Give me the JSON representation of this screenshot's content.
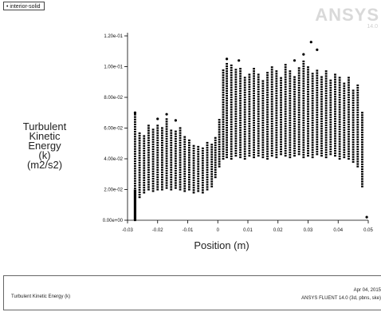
{
  "legend": {
    "marker": "•",
    "label": "interior-solid"
  },
  "logo": {
    "text": "ANSYS",
    "sub": "14.0"
  },
  "chart_data": {
    "type": "scatter",
    "title": "",
    "ylabel_lines": [
      "Turbulent",
      "Kinetic",
      "Energy",
      "(k)",
      "(m2/s2)"
    ],
    "xlabel": "Position (m)",
    "xlim": [
      -0.03,
      0.05
    ],
    "ylim": [
      0,
      0.12
    ],
    "x_ticks": [
      -0.03,
      -0.02,
      -0.01,
      0,
      0.01,
      0.02,
      0.03,
      0.04,
      0.05
    ],
    "x_tick_labels": [
      "-0.03",
      "-0.02",
      "-0.01",
      "0",
      "0.01",
      "0.02",
      "0.03",
      "0.04",
      "0.05"
    ],
    "y_ticks": [
      0,
      0.02,
      0.04,
      0.06,
      0.08,
      0.1,
      0.12
    ],
    "y_tick_labels": [
      "0.00e+00",
      "2.00e-02",
      "4.00e-02",
      "6.00e-02",
      "8.00e-02",
      "1.00e-01",
      "1.20e-01"
    ],
    "series": [
      {
        "name": "interior-solid",
        "color": "#000000",
        "columns": [
          {
            "x": -0.0275,
            "ymin": 0.0,
            "ymax": 0.07
          },
          {
            "x": -0.026,
            "ymin": 0.015,
            "ymax": 0.058
          },
          {
            "x": -0.0245,
            "ymin": 0.018,
            "ymax": 0.055
          },
          {
            "x": -0.023,
            "ymin": 0.02,
            "ymax": 0.062
          },
          {
            "x": -0.0215,
            "ymin": 0.019,
            "ymax": 0.06
          },
          {
            "x": -0.02,
            "ymin": 0.02,
            "ymax": 0.063
          },
          {
            "x": -0.0185,
            "ymin": 0.02,
            "ymax": 0.061
          },
          {
            "x": -0.017,
            "ymin": 0.021,
            "ymax": 0.067
          },
          {
            "x": -0.0155,
            "ymin": 0.02,
            "ymax": 0.059
          },
          {
            "x": -0.014,
            "ymin": 0.021,
            "ymax": 0.058
          },
          {
            "x": -0.0125,
            "ymin": 0.02,
            "ymax": 0.06
          },
          {
            "x": -0.011,
            "ymin": 0.019,
            "ymax": 0.055
          },
          {
            "x": -0.0095,
            "ymin": 0.02,
            "ymax": 0.052
          },
          {
            "x": -0.008,
            "ymin": 0.018,
            "ymax": 0.049
          },
          {
            "x": -0.0065,
            "ymin": 0.019,
            "ymax": 0.048
          },
          {
            "x": -0.005,
            "ymin": 0.018,
            "ymax": 0.047
          },
          {
            "x": -0.0035,
            "ymin": 0.02,
            "ymax": 0.051
          },
          {
            "x": -0.002,
            "ymin": 0.022,
            "ymax": 0.05
          },
          {
            "x": -0.0008,
            "ymin": 0.028,
            "ymax": 0.054
          },
          {
            "x": 0.0005,
            "ymin": 0.035,
            "ymax": 0.066
          },
          {
            "x": 0.0018,
            "ymin": 0.04,
            "ymax": 0.099
          },
          {
            "x": 0.003,
            "ymin": 0.041,
            "ymax": 0.103
          },
          {
            "x": 0.0045,
            "ymin": 0.04,
            "ymax": 0.101
          },
          {
            "x": 0.006,
            "ymin": 0.042,
            "ymax": 0.098
          },
          {
            "x": 0.0075,
            "ymin": 0.041,
            "ymax": 0.1
          },
          {
            "x": 0.009,
            "ymin": 0.04,
            "ymax": 0.093
          },
          {
            "x": 0.0105,
            "ymin": 0.042,
            "ymax": 0.096
          },
          {
            "x": 0.012,
            "ymin": 0.041,
            "ymax": 0.099
          },
          {
            "x": 0.0135,
            "ymin": 0.042,
            "ymax": 0.095
          },
          {
            "x": 0.015,
            "ymin": 0.041,
            "ymax": 0.092
          },
          {
            "x": 0.0165,
            "ymin": 0.04,
            "ymax": 0.096
          },
          {
            "x": 0.018,
            "ymin": 0.042,
            "ymax": 0.1
          },
          {
            "x": 0.0195,
            "ymin": 0.041,
            "ymax": 0.098
          },
          {
            "x": 0.021,
            "ymin": 0.043,
            "ymax": 0.094
          },
          {
            "x": 0.0225,
            "ymin": 0.042,
            "ymax": 0.102
          },
          {
            "x": 0.024,
            "ymin": 0.041,
            "ymax": 0.097
          },
          {
            "x": 0.0255,
            "ymin": 0.042,
            "ymax": 0.094
          },
          {
            "x": 0.027,
            "ymin": 0.043,
            "ymax": 0.099
          },
          {
            "x": 0.0285,
            "ymin": 0.041,
            "ymax": 0.104
          },
          {
            "x": 0.03,
            "ymin": 0.042,
            "ymax": 0.101
          },
          {
            "x": 0.0315,
            "ymin": 0.041,
            "ymax": 0.096
          },
          {
            "x": 0.033,
            "ymin": 0.043,
            "ymax": 0.098
          },
          {
            "x": 0.0345,
            "ymin": 0.042,
            "ymax": 0.094
          },
          {
            "x": 0.036,
            "ymin": 0.041,
            "ymax": 0.097
          },
          {
            "x": 0.0375,
            "ymin": 0.043,
            "ymax": 0.092
          },
          {
            "x": 0.039,
            "ymin": 0.042,
            "ymax": 0.095
          },
          {
            "x": 0.0405,
            "ymin": 0.04,
            "ymax": 0.093
          },
          {
            "x": 0.042,
            "ymin": 0.041,
            "ymax": 0.09
          },
          {
            "x": 0.0435,
            "ymin": 0.04,
            "ymax": 0.094
          },
          {
            "x": 0.045,
            "ymin": 0.038,
            "ymax": 0.085
          },
          {
            "x": 0.0465,
            "ymin": 0.035,
            "ymax": 0.088
          },
          {
            "x": 0.048,
            "ymin": 0.022,
            "ymax": 0.07
          }
        ],
        "outliers": [
          {
            "x": -0.0275,
            "y": 0.07
          },
          {
            "x": -0.02,
            "y": 0.066
          },
          {
            "x": -0.017,
            "y": 0.069
          },
          {
            "x": -0.014,
            "y": 0.065
          },
          {
            "x": 0.003,
            "y": 0.105
          },
          {
            "x": 0.007,
            "y": 0.104
          },
          {
            "x": 0.0255,
            "y": 0.104
          },
          {
            "x": 0.0285,
            "y": 0.108
          },
          {
            "x": 0.031,
            "y": 0.116
          },
          {
            "x": 0.033,
            "y": 0.111
          },
          {
            "x": 0.0495,
            "y": 0.002
          }
        ]
      }
    ],
    "grid": false,
    "legend_position": "top-left"
  },
  "footer": {
    "title": "Turbulent Kinetic Energy (k)",
    "date": "Apr 04, 2015",
    "version": "ANSYS FLUENT 14.0 (3d, pbns, ske)"
  }
}
